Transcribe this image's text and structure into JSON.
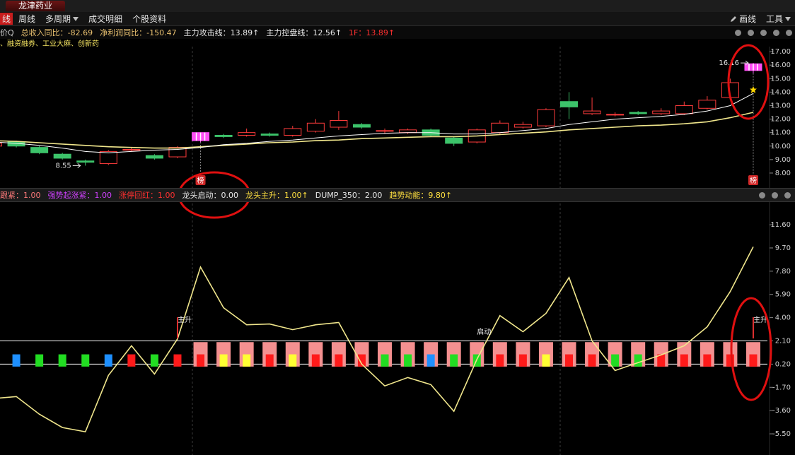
{
  "tab": "龙津药业",
  "toolbar": {
    "left": [
      "线",
      "周线",
      "多周期",
      "成交明细",
      "个股资料"
    ],
    "selected": 0,
    "right": [
      "画线",
      "工具"
    ]
  },
  "indicators": [
    {
      "text": "价Q",
      "color": "#cfcfcf"
    },
    {
      "text": "总收入同比：-82.69",
      "color": "#e8c070"
    },
    {
      "text": "净利润同比：-150.47",
      "color": "#e8c070"
    },
    {
      "text": "主力攻击线：13.89↑",
      "color": "#e8e8e8"
    },
    {
      "text": "主力控盘线：12.56↑",
      "color": "#e8e8e8"
    },
    {
      "text": "1F：13.89↑",
      "color": "#ff3030"
    }
  ],
  "concepts": "、融资融券、工业大麻、创新药",
  "signal_header": [
    {
      "text": "跟紧：1.00",
      "color": "#ff7a7a"
    },
    {
      "text": "强势起涨紧：1.00",
      "color": "#d040ff"
    },
    {
      "text": "涨停回红：1.00",
      "color": "#ff3030"
    },
    {
      "text": "龙头启动：0.00",
      "color": "#e8e8e8"
    },
    {
      "text": "龙头主升：1.00↑",
      "color": "#ffe040"
    },
    {
      "text": "DUMP_350：2.00",
      "color": "#e8e8e8"
    },
    {
      "text": "趋势动能：9.80↑",
      "color": "#ffe040"
    }
  ],
  "chart_data": [
    {
      "type": "candlestick",
      "categories": [
        null,
        null,
        null,
        null,
        null,
        null,
        null,
        null,
        null,
        null,
        null,
        null,
        null,
        null,
        null,
        null,
        null,
        null,
        null,
        null,
        null,
        null,
        null,
        null,
        null,
        null,
        null,
        null,
        null,
        null,
        null,
        null,
        null,
        null
      ],
      "open": [
        10.0,
        10.3,
        9.9,
        9.4,
        8.9,
        8.7,
        9.7,
        9.3,
        9.2,
        10.4,
        10.8,
        10.8,
        10.9,
        10.8,
        11.1,
        11.4,
        11.6,
        11.1,
        11.0,
        11.2,
        10.6,
        10.3,
        11.0,
        11.4,
        11.5,
        13.3,
        12.4,
        12.3,
        12.5,
        12.4,
        12.4,
        12.8,
        13.6,
        15.6
      ],
      "high": [
        10.3,
        10.4,
        10.0,
        9.5,
        9.0,
        9.7,
        9.9,
        9.4,
        10.0,
        11.0,
        10.9,
        11.3,
        11.0,
        11.5,
        12.0,
        12.6,
        11.7,
        11.3,
        11.3,
        11.3,
        10.7,
        11.3,
        11.9,
        11.8,
        12.8,
        14.0,
        13.6,
        12.5,
        12.6,
        12.8,
        13.3,
        13.7,
        15.0,
        16.16
      ],
      "low": [
        9.9,
        9.9,
        9.4,
        9.0,
        8.55,
        8.6,
        9.6,
        9.0,
        9.1,
        10.3,
        10.6,
        10.7,
        10.7,
        10.7,
        11.0,
        11.2,
        11.3,
        10.9,
        10.9,
        10.7,
        10.0,
        10.2,
        10.9,
        11.3,
        11.4,
        12.0,
        12.3,
        12.2,
        12.3,
        12.3,
        12.3,
        12.7,
        13.5,
        15.4
      ],
      "close": [
        10.2,
        10.0,
        9.5,
        9.1,
        8.8,
        9.6,
        9.75,
        9.1,
        9.9,
        11.0,
        10.7,
        11.0,
        10.8,
        11.3,
        11.7,
        11.9,
        11.4,
        11.15,
        11.2,
        10.8,
        10.2,
        11.2,
        11.7,
        11.6,
        12.7,
        12.9,
        12.6,
        12.35,
        12.4,
        12.6,
        13.0,
        13.4,
        14.7,
        16.1
      ],
      "up_color": "#ff3c3c",
      "down_color": "#3cc36a",
      "limit_up_color": "#ff4ef5",
      "limit_up": [
        9,
        33
      ],
      "badge": "榜",
      "lines": [
        {
          "color": "#f0e68c",
          "values": [
            10.4,
            10.35,
            10.25,
            10.15,
            10.05,
            9.95,
            9.9,
            9.85,
            9.85,
            9.95,
            10.05,
            10.15,
            10.25,
            10.3,
            10.4,
            10.45,
            10.55,
            10.6,
            10.65,
            10.7,
            10.7,
            10.75,
            10.85,
            10.95,
            11.05,
            11.2,
            11.3,
            11.4,
            11.5,
            11.55,
            11.65,
            11.8,
            12.1,
            12.5
          ]
        },
        {
          "color": "#ffffff",
          "values": [
            10.3,
            10.2,
            10.05,
            9.85,
            9.6,
            9.5,
            9.6,
            9.7,
            9.75,
            9.9,
            10.1,
            10.2,
            10.35,
            10.45,
            10.6,
            10.75,
            10.85,
            10.95,
            11.0,
            11.0,
            10.9,
            10.9,
            11.0,
            11.15,
            11.3,
            11.6,
            11.8,
            12.0,
            12.1,
            12.2,
            12.35,
            12.6,
            13.0,
            13.9
          ]
        }
      ],
      "ylim": [
        6.95,
        17.37
      ],
      "yticks": [
        {
          "value": 8,
          "label": "8.00"
        },
        {
          "value": 9,
          "label": "9.00"
        },
        {
          "value": 10,
          "label": "10.00"
        },
        {
          "value": 11,
          "label": "11.00"
        },
        {
          "value": 12,
          "label": "12.00"
        },
        {
          "value": 13,
          "label": "13.00"
        },
        {
          "value": 14,
          "label": "14.00"
        },
        {
          "value": 15,
          "label": "15.00"
        },
        {
          "value": 16,
          "label": "16.00"
        },
        {
          "value": 17,
          "label": "17.00"
        }
      ]
    },
    {
      "type": "combo",
      "categories": [
        null,
        null,
        null,
        null,
        null,
        null,
        null,
        null,
        null,
        null,
        null,
        null,
        null,
        null,
        null,
        null,
        null,
        null,
        null,
        null,
        null,
        null,
        null,
        null,
        null,
        null,
        null,
        null,
        null,
        null,
        null,
        null,
        null,
        null
      ],
      "series": [
        {
          "type": "bar",
          "color": "#f49090",
          "values": [
            null,
            null,
            null,
            null,
            null,
            null,
            null,
            null,
            null,
            2,
            2,
            2,
            2,
            2,
            2,
            2,
            2,
            2,
            2,
            2,
            2,
            2,
            2,
            2,
            2,
            2,
            2,
            2,
            2,
            2,
            2,
            2,
            2,
            2
          ]
        },
        {
          "type": "bar",
          "values": [
            null,
            1,
            1,
            1,
            1,
            1,
            1,
            1,
            1,
            1,
            1,
            1,
            1,
            1,
            1,
            1,
            1,
            1,
            1,
            1,
            1,
            1,
            1,
            1,
            1,
            1,
            1,
            1,
            1,
            1,
            1,
            1,
            1,
            1
          ],
          "colors": [
            null,
            "#1e90ff",
            "#22dd22",
            "#22dd22",
            "#22dd22",
            "#1e90ff",
            "#ff1a1a",
            "#22dd22",
            "#ff1a1a",
            "#ff1a1a",
            "#ffff33",
            "#ffff33",
            "#ff1a1a",
            "#ffff33",
            "#ff1a1a",
            "#ff1a1a",
            "#ff1a1a",
            "#22dd22",
            "#22dd22",
            "#1e90ff",
            "#22dd22",
            "#22dd22",
            "#ff1a1a",
            "#ff1a1a",
            "#ffff33",
            "#ff1a1a",
            "#ff1a1a",
            "#22dd22",
            "#22dd22",
            "#ff1a1a",
            "#ff1a1a",
            "#ff1a1a",
            "#ff1a1a",
            "#ff1a1a"
          ]
        },
        {
          "type": "line",
          "color": "#f0e68c",
          "values": [
            -2.62,
            -2.45,
            -3.89,
            -4.98,
            -5.33,
            -0.72,
            1.7,
            -0.61,
            2.27,
            8.14,
            4.81,
            3.42,
            3.48,
            3.02,
            3.42,
            3.6,
            0.2,
            -1.58,
            -0.89,
            -1.47,
            -3.66,
            0.6,
            4.17,
            2.85,
            4.35,
            7.28,
            2.1,
            -0.32,
            0.32,
            0.95,
            1.7,
            3.25,
            6.13,
            9.8
          ]
        }
      ],
      "ylim": [
        -7.23,
        13.51
      ],
      "yticks": [
        {
          "value": 11.6,
          "label": "11.60"
        },
        {
          "value": 9.7,
          "label": "9.70"
        },
        {
          "value": 7.8,
          "label": "7.80"
        },
        {
          "value": 5.9,
          "label": "5.90"
        },
        {
          "value": 4,
          "label": "4.00"
        },
        {
          "value": 2.1,
          "label": "2.10"
        },
        {
          "value": 0.2,
          "label": "0.20"
        },
        {
          "value": -1.7,
          "label": "-1.70"
        },
        {
          "value": -3.6,
          "label": "-3.60"
        },
        {
          "value": -5.5,
          "label": "-5.50"
        }
      ],
      "annotations": [
        {
          "index": 8,
          "text": "主升"
        },
        {
          "index": 21,
          "text": "启动"
        },
        {
          "index": 33,
          "text": "主升"
        }
      ]
    }
  ]
}
